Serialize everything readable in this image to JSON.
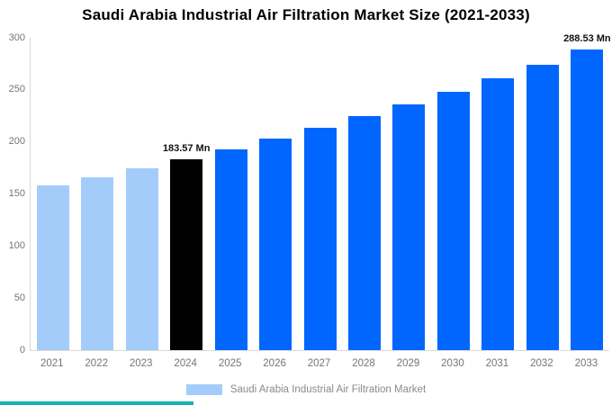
{
  "chart_data": {
    "type": "bar",
    "title": "Saudi Arabia Industrial Air Filtration Market Size (2021-2033)",
    "unit": "Mn",
    "categories": [
      "2021",
      "2022",
      "2023",
      "2024",
      "2025",
      "2026",
      "2027",
      "2028",
      "2029",
      "2030",
      "2031",
      "2032",
      "2033"
    ],
    "values": [
      157.87,
      166.01,
      174.57,
      183.57,
      193.03,
      202.99,
      213.45,
      224.46,
      236.03,
      248.2,
      261.0,
      274.45,
      288.53
    ],
    "value_labels": [
      "",
      "",
      "",
      "183.57 Mn",
      "",
      "",
      "",
      "",
      "",
      "",
      "",
      "",
      "288.53 Mn"
    ],
    "bar_roles": [
      "historical",
      "historical",
      "historical",
      "base",
      "forecast",
      "forecast",
      "forecast",
      "forecast",
      "forecast",
      "forecast",
      "forecast",
      "forecast",
      "forecast"
    ],
    "role_colors": {
      "historical": "#a4ccfa",
      "base": "#000000",
      "forecast": "#0066fe"
    },
    "ylim": [
      0,
      300
    ],
    "yticks": [
      0,
      50,
      100,
      150,
      200,
      250,
      300
    ],
    "grid": false,
    "legend_position": "bottom",
    "legend": {
      "label": "Saudi Arabia Industrial Air Filtration Market",
      "swatch_color": "#a4ccfa"
    },
    "axis": {
      "line_color": "#d9d9d9",
      "tick_label_color": "#757575"
    }
  },
  "footer": {
    "strip_color": "#14b4ba"
  }
}
